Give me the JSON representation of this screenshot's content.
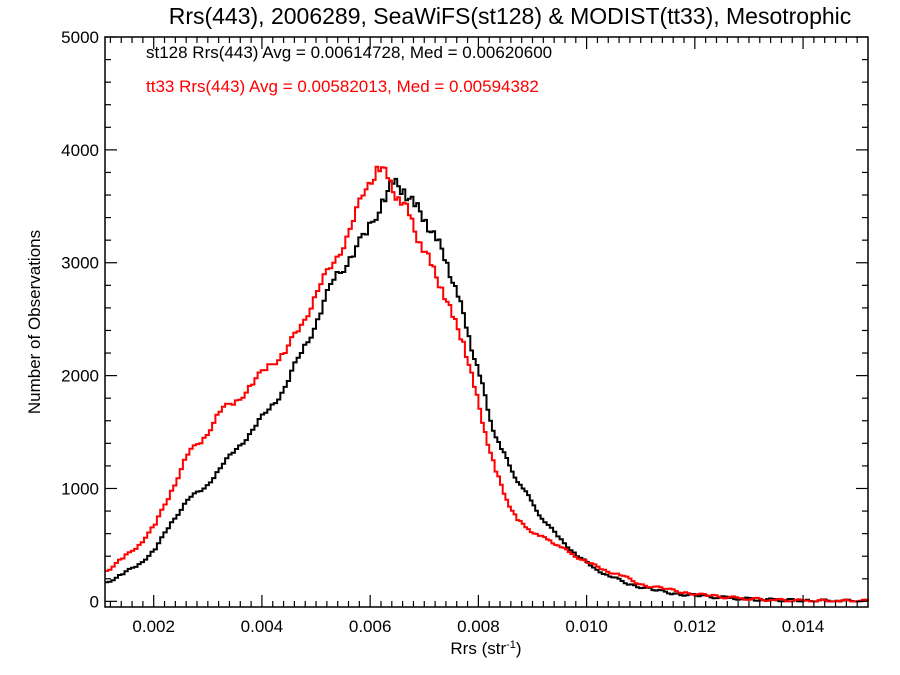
{
  "chart_data": {
    "type": "line",
    "title": "Rrs(443), 2006289, SeaWiFS(st128) & MODIST(tt33), Mesotrophic",
    "xlabel": "Rrs (str",
    "xlabel_sup": "-1",
    "xlabel_close": ")",
    "ylabel": "Number of Observations",
    "xlim": [
      0.0011,
      0.0152
    ],
    "ylim": [
      -50,
      5000
    ],
    "x_ticks": [
      0.002,
      0.004,
      0.006,
      0.008,
      0.01,
      0.012,
      0.014
    ],
    "x_tick_labels": [
      "0.002",
      "0.004",
      "0.006",
      "0.008",
      "0.010",
      "0.012",
      "0.014"
    ],
    "y_ticks": [
      0,
      1000,
      2000,
      3000,
      4000,
      5000
    ],
    "y_tick_labels": [
      "0",
      "1000",
      "2000",
      "3000",
      "4000",
      "5000"
    ],
    "grid": false,
    "annotations": [
      {
        "text": "st128 Rrs(443) Avg = 0.00614728, Med = 0.00620600",
        "color": "#000000"
      },
      {
        "text": "tt33 Rrs(443) Avg = 0.00582013, Med = 0.00594382",
        "color": "#ff0000"
      }
    ],
    "series": [
      {
        "color": "#000000",
        "style": "step",
        "points": [
          [
            0.0011,
            170
          ],
          [
            0.0014,
            240
          ],
          [
            0.0017,
            330
          ],
          [
            0.002,
            460
          ],
          [
            0.0023,
            700
          ],
          [
            0.0026,
            900
          ],
          [
            0.0029,
            1000
          ],
          [
            0.0032,
            1180
          ],
          [
            0.0035,
            1350
          ],
          [
            0.0038,
            1520
          ],
          [
            0.0041,
            1700
          ],
          [
            0.0044,
            1900
          ],
          [
            0.0047,
            2200
          ],
          [
            0.005,
            2500
          ],
          [
            0.0053,
            2850
          ],
          [
            0.0056,
            3050
          ],
          [
            0.0059,
            3250
          ],
          [
            0.0062,
            3560
          ],
          [
            0.0064,
            3700
          ],
          [
            0.0066,
            3650
          ],
          [
            0.0068,
            3500
          ],
          [
            0.007,
            3380
          ],
          [
            0.0072,
            3200
          ],
          [
            0.0074,
            3000
          ],
          [
            0.0076,
            2700
          ],
          [
            0.0078,
            2350
          ],
          [
            0.008,
            2000
          ],
          [
            0.0082,
            1600
          ],
          [
            0.0084,
            1350
          ],
          [
            0.0086,
            1150
          ],
          [
            0.0088,
            1000
          ],
          [
            0.009,
            850
          ],
          [
            0.0092,
            700
          ],
          [
            0.0095,
            550
          ],
          [
            0.0098,
            400
          ],
          [
            0.0101,
            300
          ],
          [
            0.0104,
            220
          ],
          [
            0.0108,
            150
          ],
          [
            0.0112,
            100
          ],
          [
            0.0116,
            70
          ],
          [
            0.012,
            50
          ],
          [
            0.0126,
            30
          ],
          [
            0.0132,
            15
          ],
          [
            0.014,
            8
          ],
          [
            0.0146,
            5
          ],
          [
            0.0152,
            2
          ]
        ]
      },
      {
        "color": "#ff0000",
        "style": "step",
        "points": [
          [
            0.0011,
            270
          ],
          [
            0.0014,
            380
          ],
          [
            0.0017,
            500
          ],
          [
            0.002,
            680
          ],
          [
            0.0023,
            980
          ],
          [
            0.0026,
            1300
          ],
          [
            0.0029,
            1450
          ],
          [
            0.0032,
            1680
          ],
          [
            0.0035,
            1780
          ],
          [
            0.0038,
            1920
          ],
          [
            0.0041,
            2100
          ],
          [
            0.0044,
            2200
          ],
          [
            0.0047,
            2450
          ],
          [
            0.005,
            2750
          ],
          [
            0.0053,
            3000
          ],
          [
            0.0056,
            3300
          ],
          [
            0.0059,
            3650
          ],
          [
            0.0061,
            3850
          ],
          [
            0.0063,
            3750
          ],
          [
            0.0065,
            3580
          ],
          [
            0.0067,
            3420
          ],
          [
            0.0069,
            3180
          ],
          [
            0.0071,
            2980
          ],
          [
            0.0073,
            2780
          ],
          [
            0.0075,
            2520
          ],
          [
            0.0077,
            2300
          ],
          [
            0.0079,
            1900
          ],
          [
            0.0081,
            1500
          ],
          [
            0.0083,
            1150
          ],
          [
            0.0085,
            900
          ],
          [
            0.0087,
            720
          ],
          [
            0.0089,
            640
          ],
          [
            0.0091,
            580
          ],
          [
            0.0093,
            540
          ],
          [
            0.0095,
            480
          ],
          [
            0.0097,
            420
          ],
          [
            0.01,
            340
          ],
          [
            0.0103,
            280
          ],
          [
            0.0106,
            230
          ],
          [
            0.011,
            150
          ],
          [
            0.0114,
            110
          ],
          [
            0.0118,
            80
          ],
          [
            0.0122,
            50
          ],
          [
            0.0128,
            28
          ],
          [
            0.0134,
            12
          ],
          [
            0.014,
            5
          ],
          [
            0.0146,
            3
          ],
          [
            0.0152,
            2
          ]
        ]
      }
    ]
  }
}
